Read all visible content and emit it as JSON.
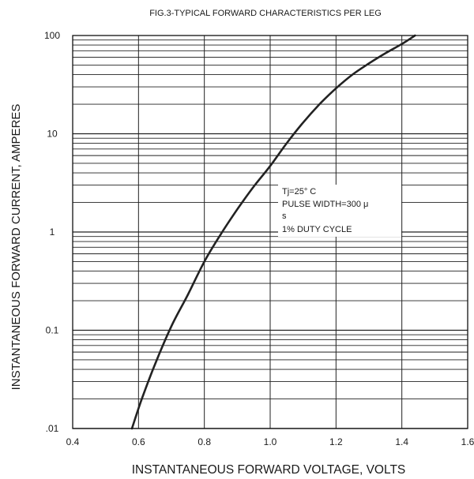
{
  "chart_data": {
    "type": "line",
    "title": "FIG.3-TYPICAL FORWARD CHARACTERISTICS PER LEG",
    "xlabel": "INSTANTANEOUS FORWARD VOLTAGE, VOLTS",
    "ylabel": "INSTANTANEOUS FORWARD CURRENT, AMPERES",
    "x_scale": "linear",
    "y_scale": "log",
    "xlim": [
      0.4,
      1.6
    ],
    "ylim": [
      0.01,
      100
    ],
    "x_ticks": [
      0.4,
      0.6,
      0.8,
      1.0,
      1.2,
      1.4,
      1.6
    ],
    "x_tick_labels": [
      "0.4",
      "0.6",
      "0.8",
      "1.0",
      "1.2",
      "1.4",
      "1.6"
    ],
    "y_ticks": [
      0.01,
      0.1,
      1,
      10,
      100
    ],
    "y_tick_labels": [
      ".01",
      "0.1",
      "1",
      "10",
      "100"
    ],
    "grid": true,
    "annotation": [
      "Tj=25° C",
      "PULSE WIDTH=300 μ",
      "s",
      "1% DUTY CYCLE"
    ],
    "series": [
      {
        "x": [
          0.58,
          0.61,
          0.65,
          0.7,
          0.75,
          0.8,
          0.85,
          0.9,
          0.95,
          1.0,
          1.05,
          1.1,
          1.15,
          1.2,
          1.25,
          1.3,
          1.35,
          1.4,
          1.44
        ],
        "y": [
          0.01,
          0.02,
          0.045,
          0.11,
          0.23,
          0.5,
          0.95,
          1.7,
          2.9,
          4.7,
          8.0,
          13,
          20,
          29,
          40,
          52,
          66,
          82,
          100
        ],
        "color": "#222222"
      }
    ]
  }
}
